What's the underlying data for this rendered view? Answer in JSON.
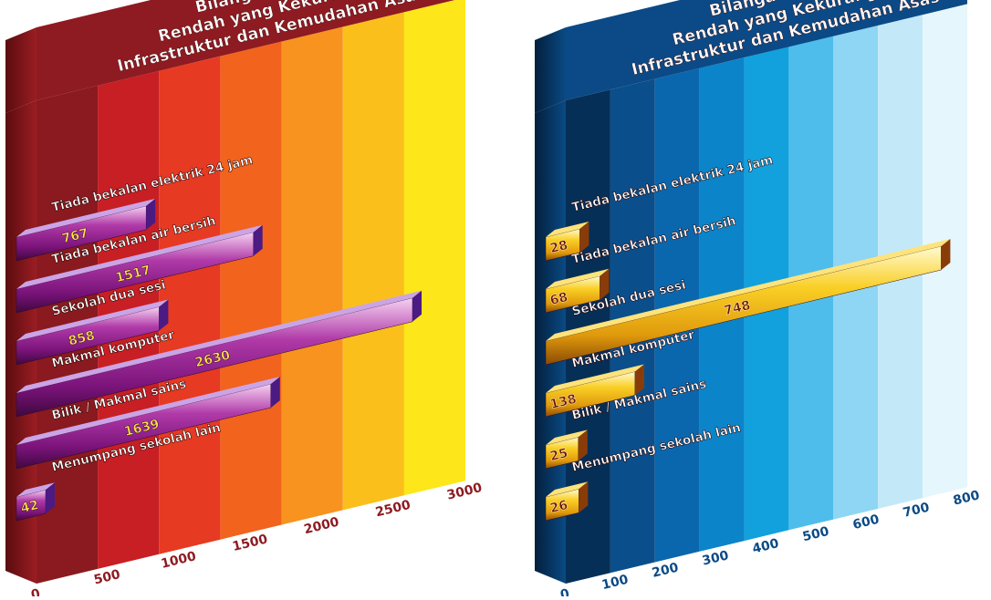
{
  "chart_data": [
    {
      "type": "bar",
      "orientation": "horizontal",
      "title": "Bilangan Sekolah Rendah yang Kekurangan Infrastruktur dan Kemudahan Asas",
      "title_lines": [
        "Bilangan Sekolah",
        "Rendah yang Kekurangan",
        "Infrastruktur dan Kemudahan Asas"
      ],
      "categories": [
        "Tiada bekalan elektrik 24 jam",
        "Tiada bekalan air bersih",
        "Sekolah dua sesi",
        "Makmal komputer",
        "Bilik / Makmal sains",
        "Menumpang sekolah lain"
      ],
      "values": [
        767,
        1517,
        858,
        2630,
        1639,
        42
      ],
      "value_labels": [
        "767",
        "1517",
        "858",
        "2630",
        "1639",
        "42"
      ],
      "xlim": [
        0,
        3000
      ],
      "ticks": [
        0,
        500,
        1000,
        1500,
        2000,
        2500,
        3000
      ],
      "tick_labels": [
        "0",
        "500",
        "1000",
        "1500",
        "2000",
        "2500",
        "3000"
      ],
      "colors": {
        "header": "#8e1b21",
        "bands": [
          "#8a1a1f",
          "#c71f24",
          "#e63a22",
          "#f2631d",
          "#f7931e",
          "#fbbf1b",
          "#fde619"
        ],
        "bar_light": "#f3c8f0",
        "bar_mid": "#a0209a",
        "bar_dark": "#4a0a4a",
        "bar_side": "#4b1a82",
        "bar_top": "#caa4e6",
        "value_text": "#ffe14a",
        "tick_text": "#8e1b21"
      }
    },
    {
      "type": "bar",
      "orientation": "horizontal",
      "title": "Bilangan Sekolah Rendah yang Kekurangan Infrastruktur dan Kemudahan Asas",
      "title_lines": [
        "Bilangan Sekolah",
        "Rendah yang Kekurangan",
        "Infrastruktur dan Kemudahan Asas"
      ],
      "categories": [
        "Tiada bekalan elektrik 24 jam",
        "Tiada bekalan air bersih",
        "Sekolah dua sesi",
        "Makmal komputer",
        "Bilik / Makmal sains",
        "Menumpang sekolah lain"
      ],
      "values": [
        28,
        68,
        748,
        138,
        25,
        26
      ],
      "value_labels": [
        "28",
        "68",
        "748",
        "138",
        "25",
        "26"
      ],
      "xlim": [
        0,
        800
      ],
      "ticks": [
        0,
        100,
        200,
        300,
        400,
        500,
        600,
        700,
        800
      ],
      "tick_labels": [
        "0",
        "100",
        "200",
        "300",
        "400",
        "500",
        "600",
        "700",
        "800"
      ],
      "colors": {
        "header": "#0b4a86",
        "bands": [
          "#062f57",
          "#0a4f8c",
          "#0a67ae",
          "#0b84c9",
          "#12a1dd",
          "#4fbdec",
          "#8fd5f4",
          "#c3e9f9",
          "#e6f6fd"
        ],
        "bar_light": "#fff6b8",
        "bar_mid": "#f5c318",
        "bar_dark": "#8a4a05",
        "bar_side": "#8a3c08",
        "bar_top": "#ffe37a",
        "value_text": "#6a1505",
        "tick_text": "#0b4a86"
      }
    }
  ]
}
